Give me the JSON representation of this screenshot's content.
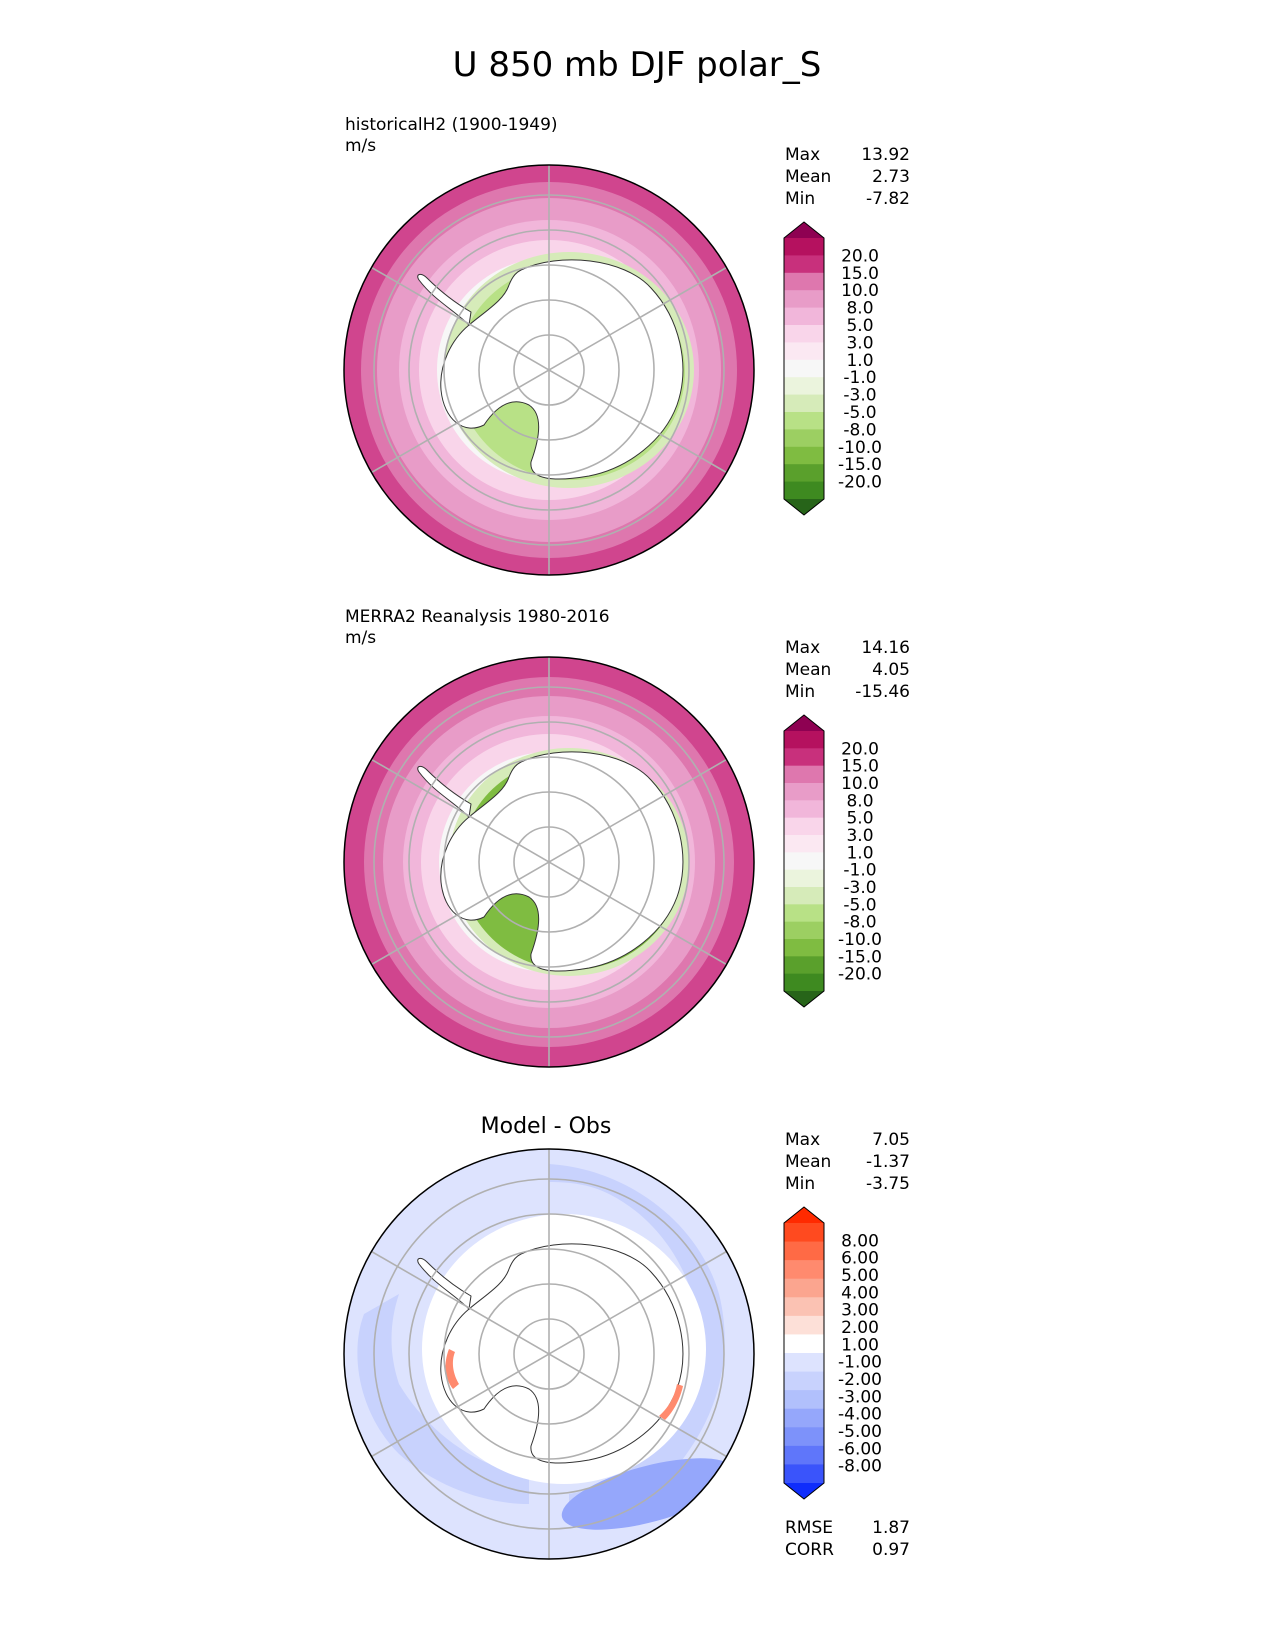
{
  "chart_data": [
    {
      "type": "heatmap",
      "suptitle": "U 850 mb DJF polar_S",
      "title": "historicalH2 (1900-1949)",
      "units": "m/s",
      "projection": "south-polar-stereographic",
      "stats": [
        {
          "label": "Max",
          "value": "13.92"
        },
        {
          "label": "Mean",
          "value": "2.73"
        },
        {
          "label": "Min",
          "value": "-7.82"
        }
      ],
      "colorbar": {
        "labels": [
          "20.0",
          "15.0",
          "10.0",
          "8.0",
          "5.0",
          "3.0",
          "1.0",
          "-1.0",
          "-3.0",
          "-5.0",
          "-8.0",
          "-10.0",
          "-15.0",
          "-20.0"
        ],
        "colors": [
          "#8e0152",
          "#b5115f",
          "#c8307c",
          "#de77ae",
          "#e89cc8",
          "#f1b6da",
          "#f9d5ea",
          "#fbe8f2",
          "#f7f7f7",
          "#ebf4dd",
          "#d6ebb9",
          "#b8e186",
          "#9ccf62",
          "#7fbc41",
          "#5aa02c",
          "#3e8a20",
          "#276419"
        ],
        "extend": "both"
      }
    },
    {
      "type": "heatmap",
      "title": "MERRA2 Reanalysis 1980-2016",
      "units": "m/s",
      "projection": "south-polar-stereographic",
      "stats": [
        {
          "label": "Max",
          "value": "14.16"
        },
        {
          "label": "Mean",
          "value": "4.05"
        },
        {
          "label": "Min",
          "value": "-15.46"
        }
      ],
      "colorbar": {
        "labels": [
          "20.0",
          "15.0",
          "10.0",
          "8.0",
          "5.0",
          "3.0",
          "1.0",
          "-1.0",
          "-3.0",
          "-5.0",
          "-8.0",
          "-10.0",
          "-15.0",
          "-20.0"
        ],
        "colors": [
          "#8e0152",
          "#b5115f",
          "#c8307c",
          "#de77ae",
          "#e89cc8",
          "#f1b6da",
          "#f9d5ea",
          "#fbe8f2",
          "#f7f7f7",
          "#ebf4dd",
          "#d6ebb9",
          "#b8e186",
          "#9ccf62",
          "#7fbc41",
          "#5aa02c",
          "#3e8a20",
          "#276419"
        ],
        "extend": "both"
      }
    },
    {
      "type": "heatmap",
      "title": "Model - Obs",
      "projection": "south-polar-stereographic",
      "stats": [
        {
          "label": "Max",
          "value": "7.05"
        },
        {
          "label": "Mean",
          "value": "-1.37"
        },
        {
          "label": "Min",
          "value": "-3.75"
        }
      ],
      "extra_stats": [
        {
          "label": "RMSE",
          "value": "1.87"
        },
        {
          "label": "CORR",
          "value": "0.97"
        }
      ],
      "colorbar": {
        "labels": [
          "8.00",
          "6.00",
          "5.00",
          "4.00",
          "3.00",
          "2.00",
          "1.00",
          "-1.00",
          "-2.00",
          "-3.00",
          "-4.00",
          "-5.00",
          "-6.00",
          "-8.00"
        ],
        "colors": [
          "#ff2a00",
          "#ff4a1f",
          "#ff6a45",
          "#ff8a6e",
          "#fba58f",
          "#fbc2b3",
          "#fde0d8",
          "#ffffff",
          "#dde3fe",
          "#c8d2fd",
          "#b1c0fc",
          "#95a7fb",
          "#7d92fa",
          "#5f76fa",
          "#3a54fb",
          "#0f2dfc"
        ],
        "extend": "both"
      }
    }
  ]
}
